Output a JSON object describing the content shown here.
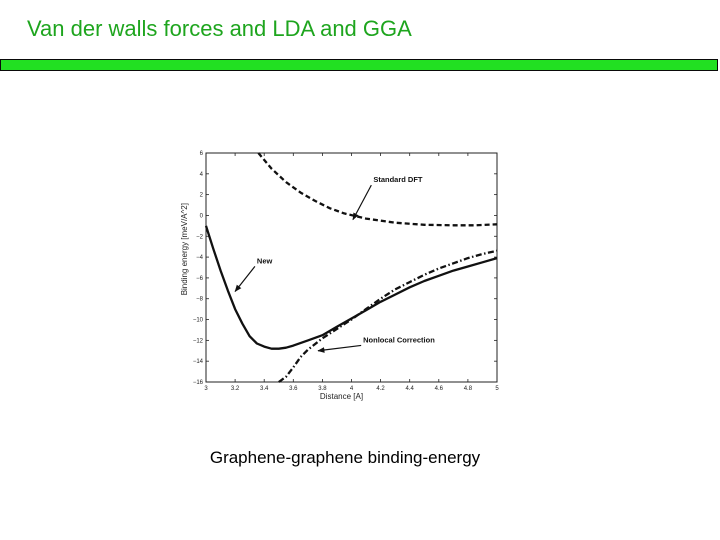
{
  "slide": {
    "title": "Van der walls forces and LDA and GGA",
    "caption": "Graphene-graphene binding-energy"
  },
  "colors": {
    "title": "#1ea51e",
    "bar": "#22e022"
  },
  "chart_data": {
    "type": "line",
    "title": "",
    "xlabel": "Distance [A]",
    "ylabel": "Binding energy [meV/A^2]",
    "xlim": [
      3,
      5
    ],
    "ylim": [
      -16,
      6
    ],
    "xticks": [
      3,
      3.2,
      3.4,
      3.6,
      3.8,
      4,
      4.2,
      4.4,
      4.6,
      4.8,
      5
    ],
    "xtick_labels": [
      "3",
      "3.2",
      "3.4",
      "3.6",
      "3.8",
      "4",
      "4.2",
      "4.4",
      "4.6",
      "4.8",
      "5"
    ],
    "yticks": [
      6,
      4,
      2,
      0,
      -2,
      -4,
      -6,
      -8,
      -10,
      -12,
      -14,
      -16
    ],
    "ytick_labels": [
      "6",
      "4",
      "2",
      "0",
      "−2",
      "−4",
      "−6",
      "−8",
      "−10",
      "−12",
      "−14",
      "−16"
    ],
    "grid": false,
    "series": [
      {
        "style": "dashed",
        "x": [
          3.36,
          3.45,
          3.55,
          3.65,
          3.75,
          3.85,
          3.95,
          4.1,
          4.3,
          4.5,
          4.7,
          4.85,
          5.0
        ],
        "y": [
          6.0,
          4.5,
          3.2,
          2.2,
          1.4,
          0.7,
          0.2,
          -0.3,
          -0.7,
          -0.9,
          -0.95,
          -0.95,
          -0.85
        ]
      },
      {
        "style": "solid",
        "x": [
          3.0,
          3.05,
          3.1,
          3.15,
          3.2,
          3.25,
          3.3,
          3.35,
          3.4,
          3.45,
          3.5,
          3.55,
          3.6,
          3.7,
          3.8,
          3.9,
          4.0,
          4.1,
          4.2,
          4.3,
          4.4,
          4.5,
          4.6,
          4.7,
          4.8,
          4.9,
          5.0
        ],
        "y": [
          -1.0,
          -3.2,
          -5.3,
          -7.2,
          -9.0,
          -10.4,
          -11.6,
          -12.3,
          -12.6,
          -12.8,
          -12.8,
          -12.7,
          -12.5,
          -12.0,
          -11.5,
          -10.7,
          -9.9,
          -9.1,
          -8.3,
          -7.6,
          -6.9,
          -6.3,
          -5.8,
          -5.3,
          -4.9,
          -4.5,
          -4.1
        ]
      },
      {
        "style": "dashdot",
        "x": [
          3.5,
          3.55,
          3.6,
          3.65,
          3.7,
          3.8,
          3.9,
          4.0,
          4.1,
          4.2,
          4.3,
          4.4,
          4.5,
          4.6,
          4.7,
          4.8,
          4.9,
          5.0
        ],
        "y": [
          -16.0,
          -15.5,
          -14.6,
          -13.6,
          -12.9,
          -11.8,
          -10.9,
          -10.0,
          -9.0,
          -8.0,
          -7.1,
          -6.4,
          -5.7,
          -5.1,
          -4.6,
          -4.1,
          -3.7,
          -3.4
        ]
      }
    ],
    "annotations": [
      {
        "text": "Standard DFT",
        "x": 4.15,
        "y": 3.2,
        "arrow_to": [
          4.01,
          -0.4
        ]
      },
      {
        "text": "New",
        "x": 3.35,
        "y": -4.6,
        "arrow_to": [
          3.2,
          -7.3
        ]
      },
      {
        "text": "Nonlocal Correction",
        "x": 4.08,
        "y": -12.2,
        "arrow_to": [
          3.77,
          -13.0
        ]
      }
    ]
  }
}
